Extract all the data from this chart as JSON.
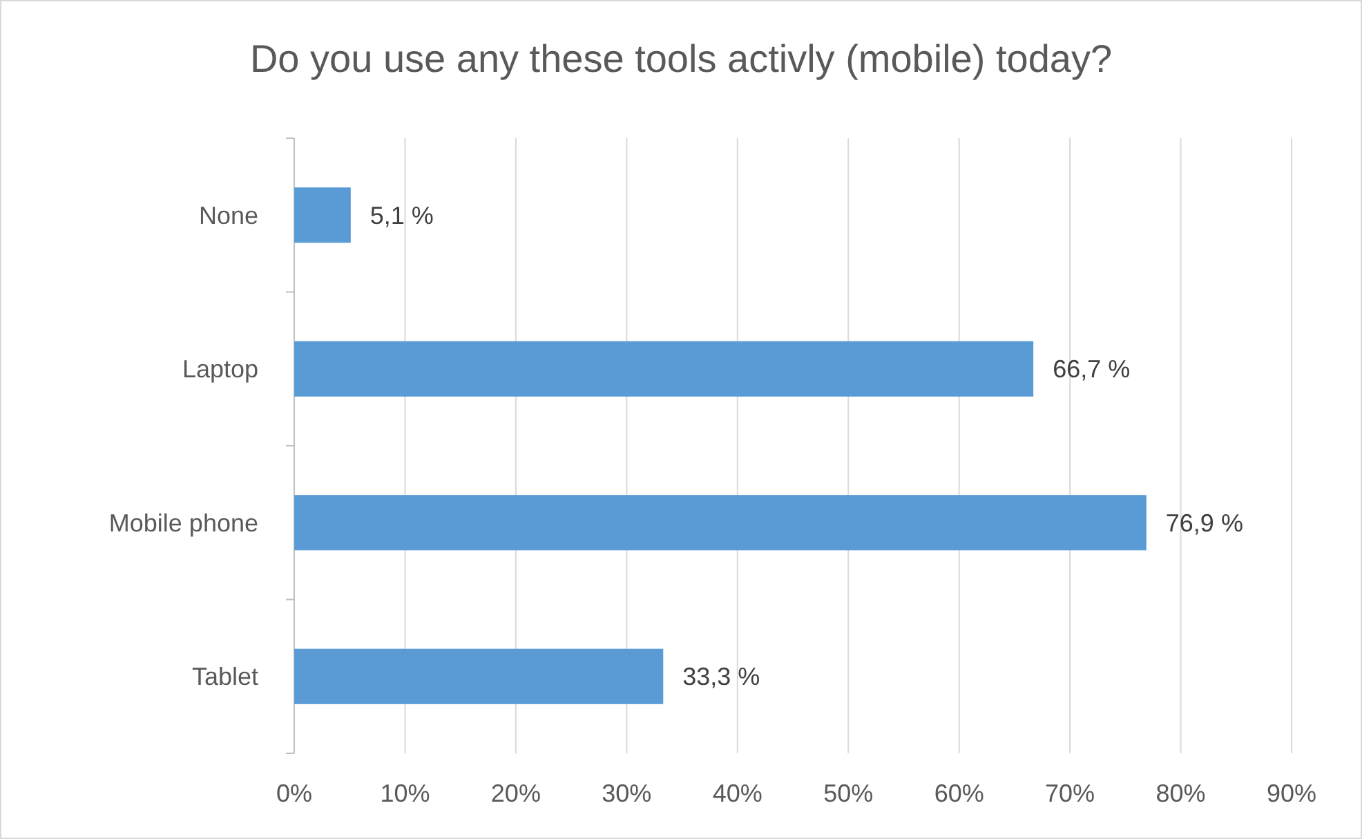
{
  "chart_data": {
    "type": "bar",
    "orientation": "horizontal",
    "title": "Do you use any these tools activly (mobile) today?",
    "categories": [
      "None",
      "Laptop",
      "Mobile phone",
      "Tablet"
    ],
    "values": [
      5.1,
      66.7,
      76.9,
      33.3
    ],
    "color": "#5b9bd5",
    "value_labels": [
      "5,1 %",
      "66,7 %",
      "76,9 %",
      "33,3 %"
    ],
    "xlim": [
      0,
      90
    ],
    "xticks": [
      {
        "value": 0,
        "label": "0%"
      },
      {
        "value": 10,
        "label": "10%"
      },
      {
        "value": 20,
        "label": "20%"
      },
      {
        "value": 30,
        "label": "30%"
      },
      {
        "value": 40,
        "label": "40%"
      },
      {
        "value": 50,
        "label": "50%"
      },
      {
        "value": 60,
        "label": "60%"
      },
      {
        "value": 70,
        "label": "70%"
      },
      {
        "value": 80,
        "label": "80%"
      },
      {
        "value": 90,
        "label": "90%"
      }
    ],
    "grid": "x"
  }
}
